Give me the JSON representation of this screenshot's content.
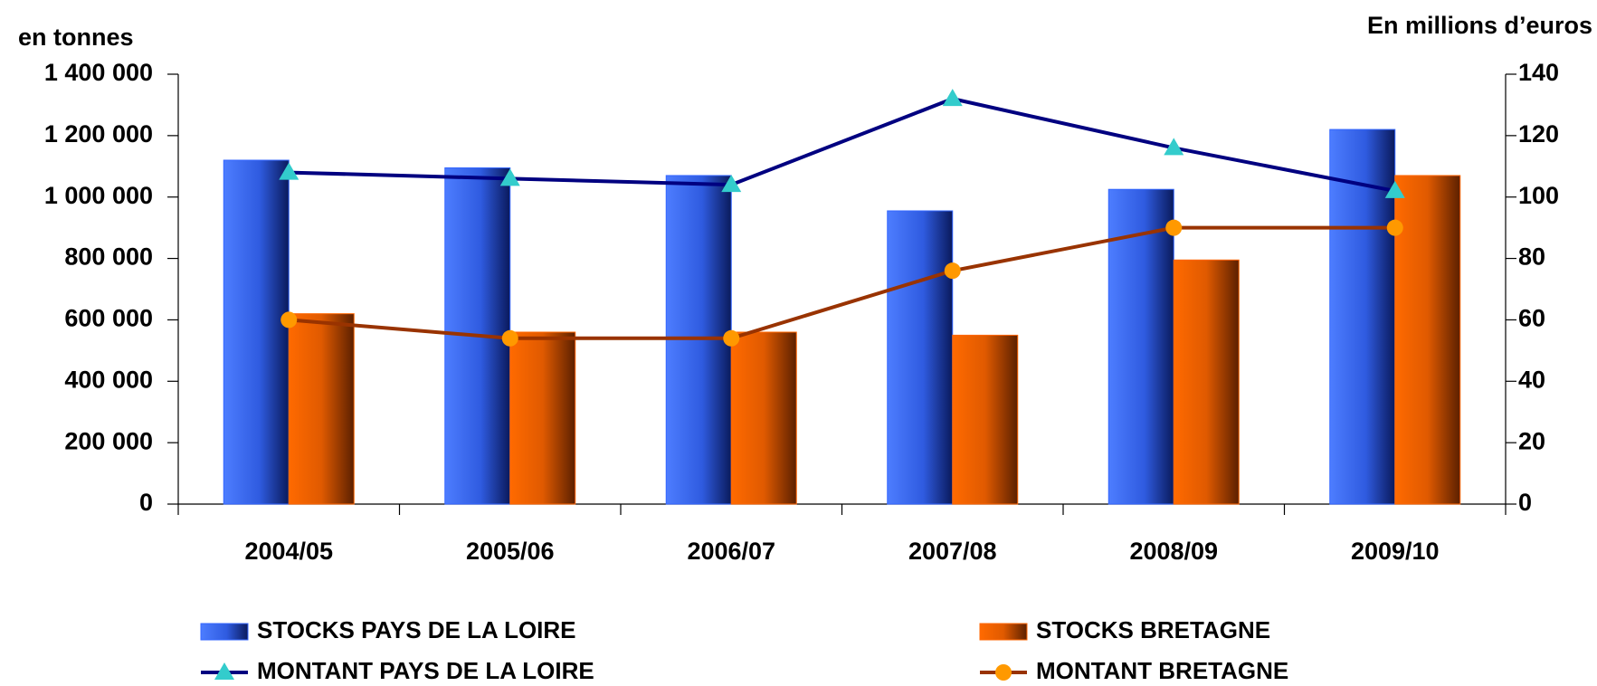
{
  "chart_data": {
    "type": "bar",
    "y_label": "en tonnes",
    "y2_label": "En millions d’euros",
    "categories": [
      "2004/05",
      "2005/06",
      "2006/07",
      "2007/08",
      "2008/09",
      "2009/10"
    ],
    "series": [
      {
        "name": "STOCKS PAYS DE LA LOIRE",
        "type": "bar",
        "color": "#3366ff",
        "values": [
          1120000,
          1095000,
          1070000,
          955000,
          1025000,
          1220000
        ]
      },
      {
        "name": "STOCKS BRETAGNE",
        "type": "bar",
        "color": "#ff6600",
        "values": [
          620000,
          560000,
          560000,
          550000,
          795000,
          1070000
        ]
      },
      {
        "name": "MONTANT PAYS DE LA LOIRE",
        "type": "line",
        "axis": "y2",
        "color": "#000080",
        "marker": "triangle",
        "marker_color": "#33cccc",
        "values": [
          108,
          106,
          104,
          132,
          116,
          102
        ]
      },
      {
        "name": "MONTANT BRETAGNE",
        "type": "line",
        "axis": "y2",
        "color": "#993300",
        "marker": "circle",
        "marker_color": "#ff9900",
        "values": [
          60,
          54,
          54,
          76,
          90,
          90
        ]
      }
    ],
    "ylim": [
      0,
      1400000
    ],
    "yticks": [
      0,
      {
        "value": 200000,
        "label": "200 000"
      },
      {
        "value": 400000,
        "label": "400 000"
      },
      {
        "value": 600000,
        "label": "600 000"
      },
      {
        "value": 800000,
        "label": "800 000"
      },
      {
        "value": 1000000,
        "label": "1 000 000"
      },
      {
        "value": 1200000,
        "label": "1 200 000"
      },
      {
        "value": 1400000,
        "label": "1 400 000"
      }
    ],
    "y2lim": [
      0,
      140
    ],
    "y2ticks": [
      0,
      20,
      40,
      60,
      80,
      100,
      120,
      140
    ],
    "grid": false,
    "legend": "bottom"
  }
}
